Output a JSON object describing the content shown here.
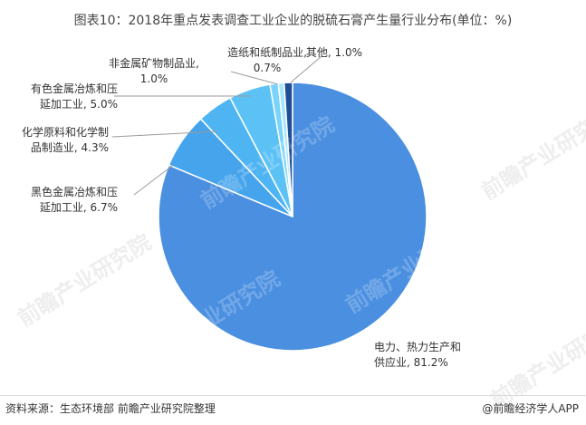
{
  "title": "图表10：2018年重点发表调查工业企业的脱硫石膏产生量行业分布(单位：%)",
  "source": "资料来源：生态环境部 前瞻产业研究院整理",
  "brand": "@前瞻经济学人APP",
  "watermark": "前瞻产业研究院",
  "chart_data": {
    "type": "pie",
    "unit": "%",
    "start_angle_deg": 0,
    "direction": "clockwise",
    "slices": [
      {
        "name": "电力、热力生产和供应业",
        "display_name": [
          "电力、热力生产和",
          "供应业"
        ],
        "value": 81.2,
        "value_label": "81.2%",
        "color": "#4a8fe0"
      },
      {
        "name": "黑色金属冶炼和压延加工业",
        "display_name": [
          "黑色金属冶炼和压",
          "延加工业"
        ],
        "value": 6.7,
        "value_label": "6.7%",
        "color": "#45a4ec"
      },
      {
        "name": "化学原料和化学制品制造业",
        "display_name": [
          "化学原料和化学制",
          "品制造业"
        ],
        "value": 4.3,
        "value_label": "4.3%",
        "color": "#4fb5f2"
      },
      {
        "name": "有色金属冶炼和压延加工业",
        "display_name": [
          "有色金属冶炼和压",
          "延加工业"
        ],
        "value": 5.0,
        "value_label": "5.0%",
        "color": "#5cc2f6"
      },
      {
        "name": "非金属矿物制品业",
        "display_name": [
          "非金属矿物制品业"
        ],
        "value": 1.0,
        "value_label": "1.0%",
        "color": "#79d3fa"
      },
      {
        "name": "造纸和纸制品业",
        "display_name": [
          "造纸和纸制品业"
        ],
        "value": 0.7,
        "value_label": "0.7%",
        "color": "#a7e6fc"
      },
      {
        "name": "其他",
        "display_name": [
          "其他"
        ],
        "value": 1.0,
        "value_label": "1.0%",
        "color": "#1f4e96"
      }
    ]
  }
}
